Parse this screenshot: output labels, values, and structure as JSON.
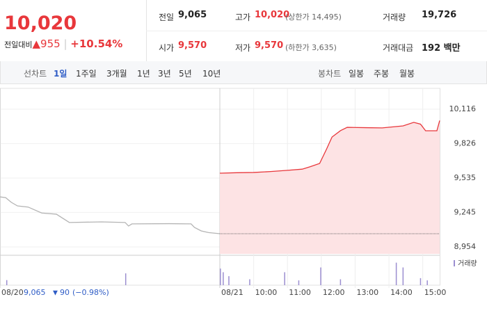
{
  "quote": {
    "price": "10,020",
    "change_label": "전일대비",
    "change": "955",
    "change_pct": "+10.54%"
  },
  "stats": [
    {
      "label": "전일",
      "value": "9,065"
    },
    {
      "label": "고가",
      "value": "10,020",
      "note": "(상한가 14,495)"
    },
    {
      "label": "거래량",
      "value": "19,726"
    },
    {
      "label": "시가",
      "value": "9,570"
    },
    {
      "label": "저가",
      "value": "9,570",
      "note": "(하한가 3,635)"
    },
    {
      "label": "거래대금",
      "value": "192 백만"
    }
  ],
  "tabs": {
    "line_label": "선차트",
    "line_periods": [
      "1일",
      "1주일",
      "3개월",
      "1년",
      "3년",
      "5년",
      "10년"
    ],
    "selected": 0,
    "candle_label": "봉차트",
    "candle_periods": [
      "일봉",
      "주봉",
      "월봉"
    ]
  },
  "chart_data": {
    "type": "line",
    "ylim": [
      8895,
      10292
    ],
    "yticks": [
      {
        "value": 10116,
        "label": "10,116"
      },
      {
        "value": 9826,
        "label": "9,826"
      },
      {
        "value": 9535,
        "label": "9,535"
      },
      {
        "value": 9245,
        "label": "9,245"
      },
      {
        "value": 8954,
        "label": "8,954"
      }
    ],
    "xticks": [
      {
        "value": "08/20 09:00",
        "label": "08/20"
      },
      {
        "value": "08/21 09:00",
        "label": "08/21"
      },
      {
        "value": "08/21 10:00",
        "label": "10:00"
      },
      {
        "value": "08/21 11:00",
        "label": "11:00"
      },
      {
        "value": "08/21 12:00",
        "label": "12:00"
      },
      {
        "value": "08/21 13:00",
        "label": "13:00"
      },
      {
        "value": "08/21 14:00",
        "label": "14:00"
      },
      {
        "value": "08/21 15:00",
        "label": "15:00"
      }
    ],
    "prev_close": 9065,
    "series": [
      {
        "color": "#b4b4b4",
        "x": [
          "08/20 09:00",
          "08/20 09:10",
          "08/20 09:20",
          "08/20 09:31",
          "08/20 09:50",
          "08/20 10:14",
          "08/20 10:40",
          "08/20 11:03",
          "08/20 12:00",
          "08/20 12:42",
          "08/20 12:48",
          "08/20 12:54",
          "08/20 14:00",
          "08/20 14:39",
          "08/20 14:45",
          "08/20 14:57",
          "08/20 15:10",
          "08/20 15:30"
        ],
        "values": [
          9376,
          9370,
          9330,
          9300,
          9290,
          9240,
          9230,
          9160,
          9165,
          9160,
          9130,
          9148,
          9150,
          9148,
          9118,
          9089,
          9075,
          9065
        ]
      },
      {
        "color": "#e8373b",
        "fill": "#fde3e4",
        "x": [
          "08/21 09:00",
          "08/21 09:30",
          "08/21 10:00",
          "08/21 10:30",
          "08/21 11:00",
          "08/21 11:26",
          "08/21 11:40",
          "08/21 11:57",
          "08/21 12:09",
          "08/21 12:19",
          "08/21 12:34",
          "08/21 12:46",
          "08/21 13:20",
          "08/21 13:48",
          "08/21 14:25",
          "08/21 14:44",
          "08/21 14:56",
          "08/21 15:05",
          "08/21 15:25",
          "08/21 15:30"
        ],
        "values": [
          9576,
          9580,
          9582,
          9590,
          9600,
          9610,
          9630,
          9658,
          9776,
          9881,
          9935,
          9963,
          9960,
          9958,
          9975,
          10005,
          9990,
          9934,
          9934,
          10020
        ]
      }
    ],
    "volume": {
      "name": "거래량",
      "color": "#9b8ed0",
      "ylim": [
        0,
        4200
      ],
      "x": [
        "08/20 09:12",
        "08/20 12:43",
        "08/21 09:01",
        "08/21 09:06",
        "08/21 09:16",
        "08/21 09:53",
        "08/21 10:55",
        "08/21 11:20",
        "08/21 11:59",
        "08/21 12:34",
        "08/21 14:13",
        "08/21 14:25",
        "08/21 14:56",
        "08/21 15:08"
      ],
      "values": [
        900,
        2100,
        2950,
        2300,
        1600,
        1050,
        2300,
        850,
        3150,
        1050,
        4000,
        3150,
        1250,
        850
      ]
    },
    "prev_summary": {
      "close": "9,065",
      "change": "90",
      "change_pct": "(−0.98%)"
    }
  }
}
